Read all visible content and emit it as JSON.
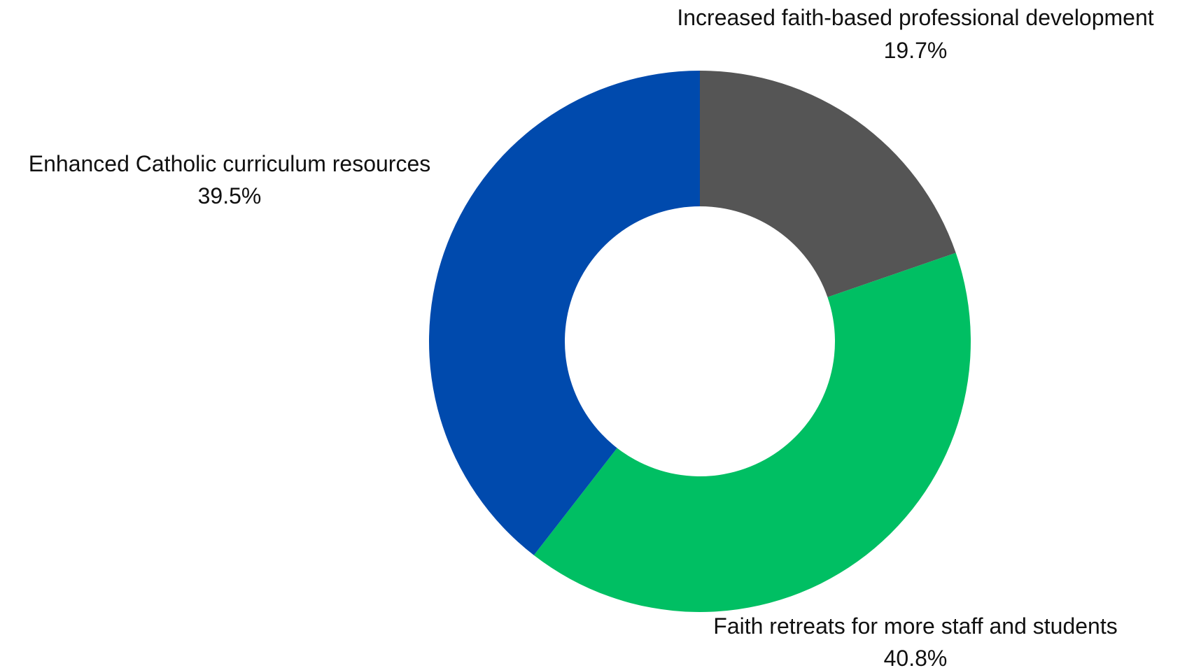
{
  "chart_data": {
    "type": "pie",
    "variant": "donut",
    "title": "",
    "start_angle_deg": 0,
    "direction": "clockwise",
    "slices": [
      {
        "label": "Increased faith-based professional development",
        "value": 19.7,
        "value_label": "19.7%",
        "color": "#555555"
      },
      {
        "label": "Faith retreats for more staff and students",
        "value": 40.8,
        "value_label": "40.8%",
        "color": "#00BF63"
      },
      {
        "label": "Enhanced Catholic curriculum resources",
        "value": 39.5,
        "value_label": "39.5%",
        "color": "#004AAD"
      }
    ]
  }
}
